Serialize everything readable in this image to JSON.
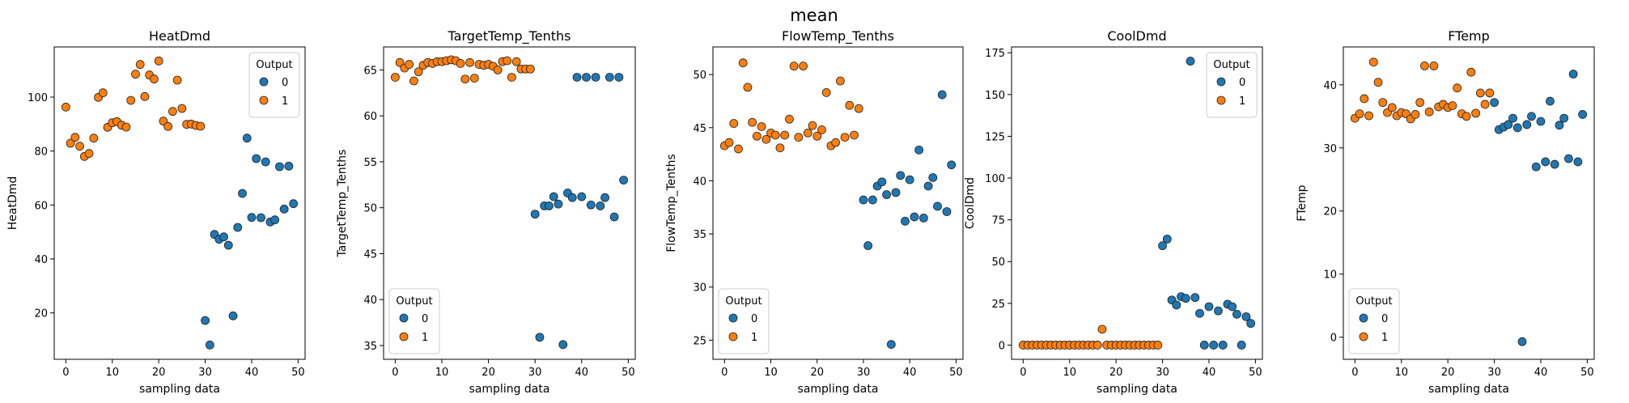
{
  "suptitle": "mean",
  "legend_title": "Output",
  "colors": {
    "0": "#1f77b4",
    "1": "#ff7f0e"
  },
  "chart_data": [
    {
      "type": "scatter",
      "title": "HeatDmd",
      "xlabel": "sampling data",
      "ylabel": "HeatDmd",
      "xlim": [
        -2.5,
        51.5
      ],
      "ylim": [
        2.8,
        118.6
      ],
      "xticks": [
        0,
        10,
        20,
        30,
        40,
        50
      ],
      "yticks": [
        20,
        40,
        60,
        80,
        100
      ],
      "legend": "upper right",
      "legend_labels": [
        "0",
        "1"
      ],
      "series": [
        {
          "name": "1",
          "x": [
            0,
            1,
            2,
            3,
            4,
            5,
            6,
            7,
            8,
            9,
            10,
            11,
            12,
            13,
            14,
            15,
            16,
            17,
            18,
            19,
            20,
            21,
            22,
            23,
            24,
            25,
            26,
            27,
            28,
            29
          ],
          "y": [
            96.3,
            82.9,
            85.1,
            81.8,
            78.0,
            79.1,
            84.8,
            99.9,
            101.6,
            88.8,
            90.5,
            90.9,
            89.6,
            88.9,
            98.8,
            108.5,
            112.1,
            100.2,
            108.2,
            106.7,
            113.4,
            91.1,
            89.1,
            94.7,
            106.3,
            95.8,
            89.9,
            90.0,
            89.5,
            89.2
          ]
        },
        {
          "name": "0",
          "x": [
            30,
            31,
            32,
            33,
            34,
            35,
            36,
            37,
            38,
            39,
            40,
            41,
            42,
            43,
            44,
            45,
            46,
            47,
            48,
            49
          ],
          "y": [
            17.2,
            8.1,
            49.1,
            47.3,
            48.2,
            45.1,
            18.9,
            51.7,
            64.3,
            84.8,
            55.4,
            77.2,
            55.3,
            76.0,
            53.7,
            54.5,
            74.2,
            58.5,
            74.4,
            60.5
          ]
        }
      ]
    },
    {
      "type": "scatter",
      "title": "TargetTemp_Tenths",
      "xlabel": "sampling data",
      "ylabel": "TargetTemp_Tenths",
      "xlim": [
        -2.5,
        51.5
      ],
      "ylim": [
        33.5,
        67.5
      ],
      "xticks": [
        0,
        10,
        20,
        30,
        40,
        50
      ],
      "yticks": [
        35,
        40,
        45,
        50,
        55,
        60,
        65
      ],
      "legend": "lower left",
      "legend_labels": [
        "0",
        "1"
      ],
      "series": [
        {
          "name": "1",
          "x": [
            0,
            1,
            2,
            3,
            4,
            5,
            6,
            7,
            8,
            9,
            10,
            11,
            12,
            13,
            14,
            15,
            16,
            17,
            18,
            19,
            20,
            21,
            22,
            23,
            24,
            25,
            26,
            27,
            28,
            29
          ],
          "y": [
            64.2,
            65.8,
            65.2,
            65.6,
            63.8,
            64.8,
            65.5,
            65.8,
            65.7,
            65.9,
            65.9,
            66.0,
            66.1,
            66.0,
            65.7,
            64.0,
            65.8,
            64.1,
            65.6,
            65.5,
            65.6,
            65.4,
            65.0,
            65.9,
            66.0,
            64.2,
            65.9,
            65.1,
            65.1,
            65.1
          ]
        },
        {
          "name": "0",
          "x": [
            30,
            31,
            32,
            33,
            34,
            35,
            36,
            37,
            38,
            39,
            40,
            41,
            42,
            43,
            44,
            45,
            46,
            47,
            48,
            49
          ],
          "y": [
            49.3,
            35.9,
            50.2,
            50.2,
            51.2,
            50.4,
            35.1,
            51.6,
            51.1,
            64.2,
            51.2,
            64.2,
            50.3,
            64.2,
            50.2,
            51.1,
            64.2,
            49.0,
            64.2,
            53.0
          ]
        }
      ]
    },
    {
      "type": "scatter",
      "title": "FlowTemp_Tenths",
      "xlabel": "sampling data",
      "ylabel": "FlowTemp_Tenths",
      "xlim": [
        -2.5,
        51.5
      ],
      "ylim": [
        23.2,
        52.6
      ],
      "xticks": [
        0,
        10,
        20,
        30,
        40,
        50
      ],
      "yticks": [
        25,
        30,
        35,
        40,
        45,
        50
      ],
      "legend": "lower left",
      "legend_labels": [
        "0",
        "1"
      ],
      "series": [
        {
          "name": "1",
          "x": [
            0,
            1,
            2,
            3,
            4,
            5,
            6,
            7,
            8,
            9,
            10,
            11,
            12,
            13,
            14,
            15,
            16,
            17,
            18,
            19,
            20,
            21,
            22,
            23,
            24,
            25,
            26,
            27,
            28,
            29
          ],
          "y": [
            43.3,
            43.6,
            45.4,
            43.0,
            51.1,
            48.8,
            45.5,
            44.2,
            45.1,
            43.9,
            44.5,
            44.3,
            43.1,
            44.3,
            45.8,
            50.8,
            44.1,
            50.8,
            44.5,
            45.2,
            44.2,
            44.8,
            48.3,
            43.3,
            43.6,
            49.4,
            44.1,
            47.1,
            44.3,
            46.8
          ]
        },
        {
          "name": "0",
          "x": [
            30,
            31,
            32,
            33,
            34,
            35,
            36,
            37,
            38,
            39,
            40,
            41,
            42,
            43,
            44,
            45,
            46,
            47,
            48,
            49
          ],
          "y": [
            38.2,
            33.9,
            38.2,
            39.5,
            39.9,
            38.7,
            24.6,
            38.9,
            40.5,
            36.2,
            40.1,
            36.6,
            42.9,
            36.5,
            39.5,
            40.3,
            37.6,
            48.1,
            37.1,
            41.5
          ]
        }
      ]
    },
    {
      "type": "scatter",
      "title": "CoolDmd",
      "xlabel": "sampling data",
      "ylabel": "CoolDmd",
      "xlim": [
        -2.5,
        51.5
      ],
      "ylim": [
        -8.5,
        178.5
      ],
      "xticks": [
        0,
        10,
        20,
        30,
        40,
        50
      ],
      "yticks": [
        0,
        25,
        50,
        75,
        100,
        125,
        150,
        175
      ],
      "legend": "upper right",
      "legend_labels": [
        "0",
        "1"
      ],
      "series": [
        {
          "name": "1",
          "x": [
            0,
            1,
            2,
            3,
            4,
            5,
            6,
            7,
            8,
            9,
            10,
            11,
            12,
            13,
            14,
            15,
            16,
            17,
            18,
            19,
            20,
            21,
            22,
            23,
            24,
            25,
            26,
            27,
            28,
            29
          ],
          "y": [
            0,
            0,
            0,
            0,
            0,
            0,
            0,
            0,
            0,
            0,
            0,
            0,
            0,
            0,
            0,
            0,
            0,
            9.5,
            0,
            0,
            0,
            0,
            0,
            0,
            0,
            0,
            0,
            0,
            0,
            0
          ]
        },
        {
          "name": "0",
          "x": [
            30,
            31,
            32,
            33,
            34,
            35,
            36,
            37,
            38,
            39,
            40,
            41,
            42,
            43,
            44,
            45,
            46,
            47,
            48,
            49
          ],
          "y": [
            59.5,
            63.5,
            27.0,
            24.0,
            29.0,
            28.0,
            170.0,
            28.5,
            19.0,
            0,
            23.0,
            0,
            20.5,
            0,
            24.5,
            23.0,
            18.5,
            0,
            17.0,
            13.0
          ]
        }
      ]
    },
    {
      "type": "scatter",
      "title": "FTemp",
      "xlabel": "sampling data",
      "ylabel": "FTemp",
      "xlim": [
        -2.5,
        51.5
      ],
      "ylim": [
        -3.5,
        46.0
      ],
      "xticks": [
        0,
        10,
        20,
        30,
        40,
        50
      ],
      "yticks": [
        0,
        10,
        20,
        30,
        40
      ],
      "legend": "lower left",
      "legend_labels": [
        "0",
        "1"
      ],
      "series": [
        {
          "name": "1",
          "x": [
            0,
            1,
            2,
            3,
            4,
            5,
            6,
            7,
            8,
            9,
            10,
            11,
            12,
            13,
            14,
            15,
            16,
            17,
            18,
            19,
            20,
            21,
            22,
            23,
            24,
            25,
            26,
            27,
            28,
            29
          ],
          "y": [
            34.7,
            35.4,
            37.8,
            35.1,
            43.6,
            40.4,
            37.2,
            35.6,
            36.4,
            35.1,
            35.6,
            35.4,
            34.6,
            35.3,
            37.2,
            43.0,
            35.7,
            43.0,
            36.5,
            36.9,
            36.4,
            36.7,
            39.5,
            35.4,
            35.0,
            42.0,
            35.5,
            38.7,
            36.9,
            38.7
          ]
        },
        {
          "name": "0",
          "x": [
            30,
            31,
            32,
            33,
            34,
            35,
            36,
            37,
            38,
            39,
            40,
            41,
            42,
            43,
            44,
            45,
            46,
            47,
            48,
            49
          ],
          "y": [
            37.2,
            32.9,
            33.3,
            33.7,
            34.7,
            33.2,
            -0.7,
            33.7,
            35.0,
            27.0,
            34.2,
            27.8,
            37.4,
            27.4,
            33.6,
            34.7,
            28.3,
            41.7,
            27.8,
            35.3
          ]
        }
      ]
    }
  ]
}
